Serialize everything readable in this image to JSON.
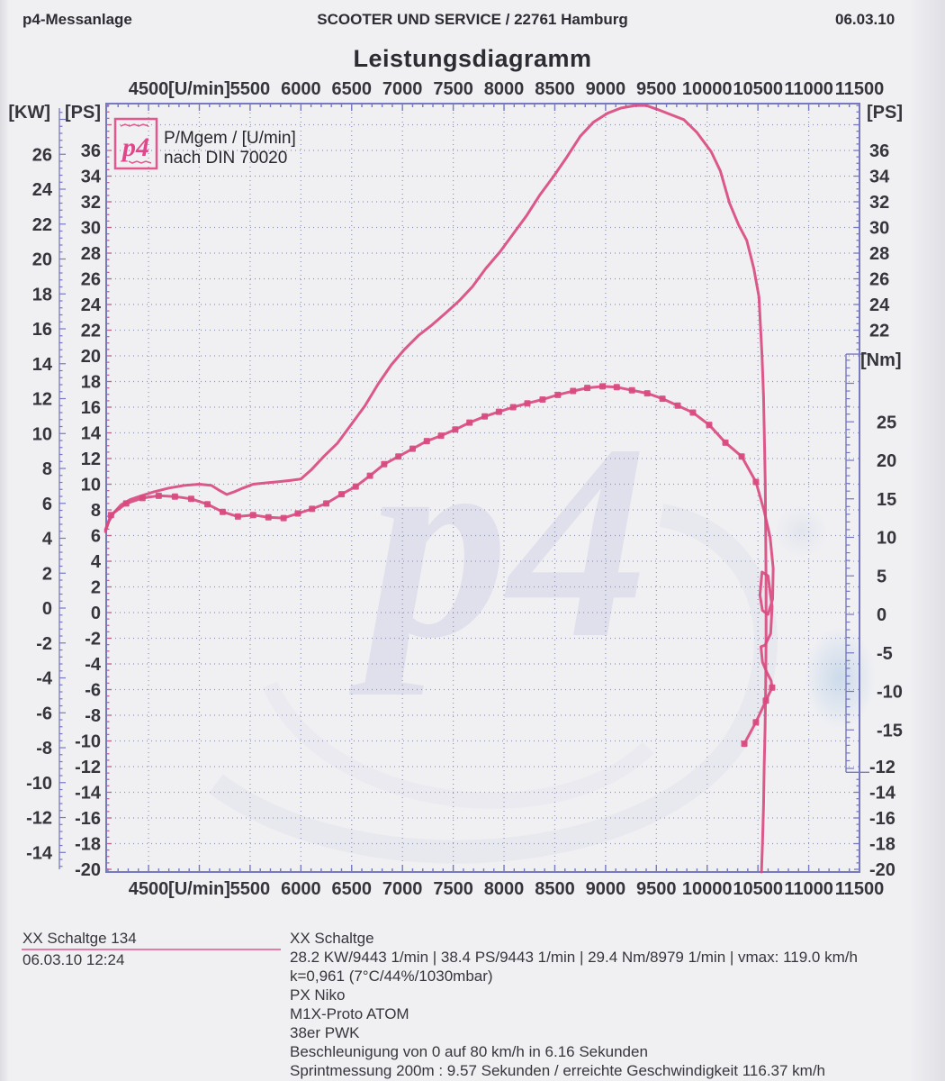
{
  "header": {
    "left": "p4-Messanlage",
    "center": "SCOOTER UND SERVICE / 22761 Hamburg",
    "right": "06.03.10"
  },
  "title": "Leistungsdiagramm",
  "footer": {
    "left_title": "XX Schaltge 134",
    "left_datetime": "06.03.10  12:24",
    "right_title": "XX Schaltge",
    "lines": [
      "28.2 KW/9443 1/min  |  38.4 PS/9443 1/min  |  29.4 Nm/8979 1/min | vmax: 119.0 km/h",
      "k=0,961 (7°C/44%/1030mbar)",
      "PX Niko",
      "M1X-Proto ATOM",
      "38er PWK",
      "Beschleunigung von 0 auf 80 km/h in 6.16 Sekunden",
      "Sprintmessung 200m : 9.57 Sekunden / erreichte Geschwindigkeit 116.37 km/h"
    ]
  },
  "chart_data": {
    "type": "line",
    "title": "Leistungsdiagramm",
    "legend": {
      "logo": "p4",
      "line1": "P/Mgem / [U/min]",
      "line2": "nach DIN 70020"
    },
    "watermark": "p4",
    "colors": {
      "curve": "#d94b80",
      "frame": "#7678c0",
      "grid": "#8d93bb",
      "tick_pink": "#cc5f85",
      "legend_pink": "#e4568c",
      "label": "#35353c"
    },
    "axes": {
      "rpm_frame": [
        4083,
        11500
      ],
      "ps_frame": [
        39.65,
        -20.21
      ],
      "nm_to_ps_scale": 0.6,
      "nm_to_ps_offset": -0.14,
      "kw_to_ps_scale": 1.3597,
      "kw_to_ps_offset": 0.35
    },
    "x_axis": {
      "unit_label": "[U/min]",
      "tick_rpms": [
        4500,
        5000,
        5500,
        6000,
        6500,
        7000,
        7500,
        8000,
        8500,
        9000,
        9500,
        10000,
        10500,
        11000,
        11500
      ],
      "tick_labels": [
        "4500",
        "[U/min]",
        "5500",
        "6000",
        "6500",
        "7000",
        "7500",
        "8000",
        "8500",
        "9000",
        "9500",
        "10000",
        "10500",
        "11000",
        "11500"
      ]
    },
    "left_axis_kw": {
      "label": "[KW]",
      "ticks": [
        26,
        24,
        22,
        20,
        18,
        16,
        14,
        12,
        10,
        8,
        6,
        4,
        2,
        0,
        -2,
        -4,
        -6,
        -8,
        -10,
        -12,
        -14
      ]
    },
    "left_axis_ps": {
      "label": "[PS]",
      "ticks": [
        36,
        34,
        32,
        30,
        28,
        26,
        24,
        22,
        20,
        18,
        16,
        14,
        12,
        10,
        8,
        6,
        4,
        2,
        0,
        -2,
        -4,
        -6,
        -8,
        -10,
        -12,
        -14,
        -16,
        -18,
        -20
      ]
    },
    "right_axis_ps": {
      "label": "[PS]",
      "ticks_top": [
        36,
        34,
        32,
        30,
        28,
        26,
        24,
        22
      ],
      "ticks_bottom": [
        -12,
        -14,
        -16,
        -18,
        -20
      ]
    },
    "right_axis_nm": {
      "label": "[Nm]",
      "bracket_nm": [
        33.8,
        -20.5
      ],
      "ticks": [
        25,
        20,
        15,
        10,
        5,
        0,
        -5,
        -10,
        -15
      ]
    },
    "series": [
      {
        "name": "power_ps",
        "axis": "ps",
        "markers": false,
        "points": [
          [
            4075,
            6.3
          ],
          [
            4110,
            7.1
          ],
          [
            4160,
            7.8
          ],
          [
            4230,
            8.4
          ],
          [
            4320,
            8.8
          ],
          [
            4430,
            9.1
          ],
          [
            4550,
            9.4
          ],
          [
            4700,
            9.7
          ],
          [
            4850,
            9.9
          ],
          [
            5000,
            10.0
          ],
          [
            5120,
            9.9
          ],
          [
            5200,
            9.5
          ],
          [
            5270,
            9.2
          ],
          [
            5340,
            9.4
          ],
          [
            5430,
            9.7
          ],
          [
            5530,
            10.0
          ],
          [
            5650,
            10.1
          ],
          [
            5780,
            10.2
          ],
          [
            5900,
            10.3
          ],
          [
            6000,
            10.4
          ],
          [
            6100,
            11.1
          ],
          [
            6230,
            12.2
          ],
          [
            6360,
            13.2
          ],
          [
            6500,
            14.7
          ],
          [
            6630,
            16.1
          ],
          [
            6760,
            17.8
          ],
          [
            6890,
            19.3
          ],
          [
            7020,
            20.5
          ],
          [
            7160,
            21.6
          ],
          [
            7290,
            22.4
          ],
          [
            7420,
            23.3
          ],
          [
            7560,
            24.3
          ],
          [
            7690,
            25.4
          ],
          [
            7820,
            26.8
          ],
          [
            7960,
            28.1
          ],
          [
            8090,
            29.5
          ],
          [
            8220,
            30.9
          ],
          [
            8350,
            32.5
          ],
          [
            8490,
            34.0
          ],
          [
            8620,
            35.5
          ],
          [
            8750,
            37.1
          ],
          [
            8880,
            38.2
          ],
          [
            9020,
            38.9
          ],
          [
            9150,
            39.3
          ],
          [
            9290,
            39.5
          ],
          [
            9400,
            39.5
          ],
          [
            9510,
            39.2
          ],
          [
            9640,
            38.8
          ],
          [
            9770,
            38.4
          ],
          [
            9900,
            37.4
          ],
          [
            10040,
            35.9
          ],
          [
            10130,
            34.4
          ],
          [
            10220,
            31.9
          ],
          [
            10310,
            30.2
          ],
          [
            10390,
            29.0
          ],
          [
            10460,
            26.8
          ],
          [
            10510,
            24.6
          ],
          [
            10540,
            20.0
          ],
          [
            10555,
            16.8
          ],
          [
            10565,
            13.0
          ],
          [
            10572,
            10.0
          ],
          [
            10577,
            6.0
          ],
          [
            10580,
            2.0
          ],
          [
            10580,
            -2.0
          ],
          [
            10577,
            -5.6
          ],
          [
            10570,
            -9.0
          ],
          [
            10562,
            -12.0
          ],
          [
            10555,
            -15.0
          ],
          [
            10545,
            -18.0
          ],
          [
            10535,
            -20.2
          ]
        ]
      },
      {
        "name": "torque_nm",
        "axis": "nm",
        "markers": true,
        "points": [
          [
            4075,
            11.0
          ],
          [
            4130,
            12.9
          ],
          [
            4280,
            14.4
          ],
          [
            4440,
            15.1
          ],
          [
            4600,
            15.4
          ],
          [
            4760,
            15.3
          ],
          [
            4920,
            15.0
          ],
          [
            5080,
            14.3
          ],
          [
            5230,
            13.3
          ],
          [
            5380,
            12.7
          ],
          [
            5530,
            12.9
          ],
          [
            5680,
            12.6
          ],
          [
            5830,
            12.5
          ],
          [
            5970,
            13.1
          ],
          [
            6110,
            13.7
          ],
          [
            6250,
            14.4
          ],
          [
            6400,
            15.6
          ],
          [
            6540,
            16.6
          ],
          [
            6680,
            18.0
          ],
          [
            6820,
            19.5
          ],
          [
            6960,
            20.5
          ],
          [
            7100,
            21.5
          ],
          [
            7240,
            22.5
          ],
          [
            7380,
            23.2
          ],
          [
            7520,
            24.0
          ],
          [
            7660,
            24.9
          ],
          [
            7810,
            25.7
          ],
          [
            7950,
            26.3
          ],
          [
            8090,
            26.9
          ],
          [
            8230,
            27.4
          ],
          [
            8380,
            27.9
          ],
          [
            8530,
            28.5
          ],
          [
            8680,
            29.0
          ],
          [
            8820,
            29.4
          ],
          [
            8970,
            29.6
          ],
          [
            9110,
            29.5
          ],
          [
            9260,
            29.1
          ],
          [
            9410,
            28.7
          ],
          [
            9560,
            28.0
          ],
          [
            9710,
            27.1
          ],
          [
            9860,
            26.2
          ],
          [
            10020,
            24.6
          ],
          [
            10180,
            22.3
          ],
          [
            10340,
            20.5
          ],
          [
            10480,
            17.2
          ]
        ]
      },
      {
        "name": "torque_runout_swirl",
        "axis": "nm",
        "markers": false,
        "points": [
          [
            10480,
            17.2
          ],
          [
            10560,
            13.5
          ],
          [
            10620,
            10.0
          ],
          [
            10650,
            6.0
          ],
          [
            10645,
            2.0
          ],
          [
            10600,
            0.0
          ],
          [
            10545,
            0.5
          ],
          [
            10520,
            2.5
          ],
          [
            10540,
            5.5
          ],
          [
            10600,
            5.0
          ],
          [
            10640,
            1.0
          ],
          [
            10625,
            -2.5
          ],
          [
            10570,
            -4.0
          ],
          [
            10530,
            -4.2
          ],
          [
            10545,
            -6.2
          ],
          [
            10590,
            -7.6
          ],
          [
            10630,
            -8.6
          ],
          [
            10640,
            -9.5
          ]
        ]
      },
      {
        "name": "torque_runout_tail",
        "axis": "nm",
        "markers": true,
        "points": [
          [
            10640,
            -9.5
          ],
          [
            10578,
            -11.2
          ],
          [
            10480,
            -14.0
          ],
          [
            10366,
            -16.8
          ]
        ]
      }
    ],
    "readout": {
      "peak_power_kw": "28.2 KW/9443 1/min",
      "peak_power_ps": "38.4 PS/9443 1/min",
      "peak_torque": "29.4 Nm/8979 1/min",
      "vmax": "vmax: 119.0 km/h"
    }
  }
}
